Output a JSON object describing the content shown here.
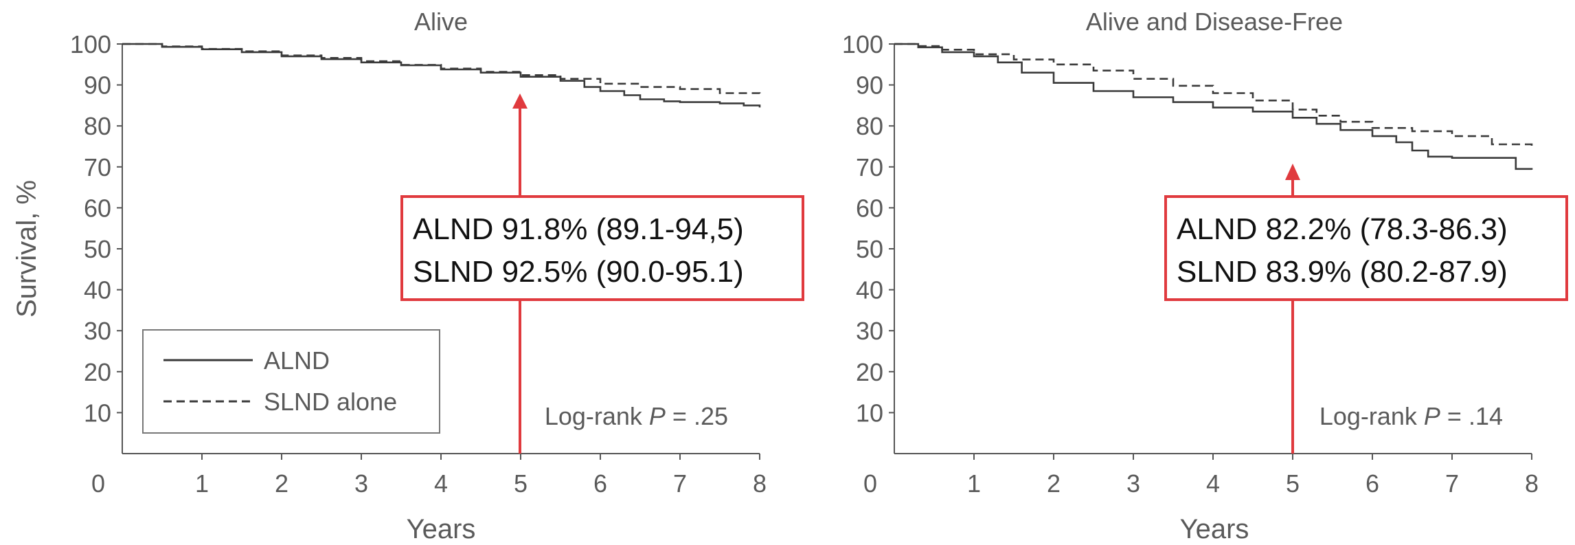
{
  "ylabel": "Survival, %",
  "colors": {
    "axis": "#555555",
    "curve": "#3a3a3a",
    "annotation": "#e03a3e",
    "text": "#5a5a5a"
  },
  "chart_data": [
    {
      "type": "line",
      "title": "Alive",
      "xlabel": "Years",
      "ylabel": "Survival, %",
      "xlim": [
        0,
        8
      ],
      "ylim": [
        0,
        100
      ],
      "xticks": [
        "0",
        "1",
        "2",
        "3",
        "4",
        "5",
        "6",
        "7",
        "8"
      ],
      "yticks": [
        "10",
        "20",
        "30",
        "40",
        "50",
        "60",
        "70",
        "80",
        "90",
        "100"
      ],
      "grid": false,
      "legend_position": "bottom-left",
      "series": [
        {
          "name": "ALND",
          "style": "solid",
          "x": [
            0,
            0.5,
            1,
            1.5,
            2,
            2.5,
            3,
            3.5,
            4,
            4.5,
            5,
            5.5,
            5.8,
            6,
            6.3,
            6.5,
            6.8,
            7,
            7.5,
            7.8,
            8
          ],
          "y": [
            100,
            99.3,
            98.7,
            98,
            97,
            96.3,
            95.5,
            94.8,
            93.8,
            93,
            92,
            91,
            89.5,
            88.5,
            87.5,
            86.5,
            86,
            85.8,
            85.5,
            85,
            84.5
          ]
        },
        {
          "name": "SLND alone",
          "style": "dashed",
          "x": [
            0,
            0.5,
            1,
            1.5,
            2,
            2.5,
            3,
            3.5,
            4,
            4.5,
            5,
            5.5,
            6,
            6.5,
            7,
            7.5,
            8
          ],
          "y": [
            100,
            99.4,
            98.8,
            98.2,
            97.2,
            96.6,
            95.8,
            94.9,
            94,
            93.2,
            92.4,
            91.5,
            90.3,
            89.5,
            89,
            88,
            87.6
          ]
        }
      ],
      "annotation": {
        "x": 5,
        "lines": [
          "ALND 91.8% (89.1-94,5)",
          "SLND 92.5% (90.0-95.1)"
        ]
      },
      "logrank": {
        "prefix": "Log-rank ",
        "p_symbol": "P",
        "value": " = .25"
      }
    },
    {
      "type": "line",
      "title": "Alive and Disease-Free",
      "xlabel": "Years",
      "ylabel": "",
      "xlim": [
        0,
        8
      ],
      "ylim": [
        0,
        100
      ],
      "xticks": [
        "0",
        "1",
        "2",
        "3",
        "4",
        "5",
        "6",
        "7",
        "8"
      ],
      "yticks": [
        "10",
        "20",
        "30",
        "40",
        "50",
        "60",
        "70",
        "80",
        "90",
        "100"
      ],
      "grid": false,
      "series": [
        {
          "name": "ALND",
          "style": "solid",
          "x": [
            0,
            0.3,
            0.6,
            1,
            1.3,
            1.6,
            2,
            2.5,
            3,
            3.5,
            4,
            4.5,
            5,
            5.3,
            5.6,
            6,
            6.3,
            6.5,
            6.7,
            7,
            7.5,
            7.8,
            8
          ],
          "y": [
            100,
            99.2,
            98,
            97,
            95.5,
            93,
            90.5,
            88.5,
            87,
            85.8,
            84.5,
            83.5,
            82,
            80.5,
            79,
            77.5,
            76,
            74,
            72.5,
            72.2,
            72.2,
            69.5,
            69.3
          ]
        },
        {
          "name": "SLND alone",
          "style": "dashed",
          "x": [
            0,
            0.3,
            0.6,
            1,
            1.5,
            2,
            2.5,
            3,
            3.5,
            4,
            4.5,
            5,
            5.3,
            5.6,
            6,
            6.5,
            7,
            7.5,
            8
          ],
          "y": [
            100,
            99.5,
            98.6,
            97.5,
            96.2,
            95,
            93.5,
            91.5,
            89.8,
            88,
            86.2,
            84,
            82.5,
            81,
            79.5,
            78.7,
            77.5,
            75.5,
            74.8
          ]
        }
      ],
      "annotation": {
        "x": 5,
        "lines": [
          "ALND 82.2% (78.3-86.3)",
          "SLND 83.9% (80.2-87.9)"
        ]
      },
      "logrank": {
        "prefix": "Log-rank ",
        "p_symbol": "P",
        "value": " = .14"
      }
    }
  ]
}
